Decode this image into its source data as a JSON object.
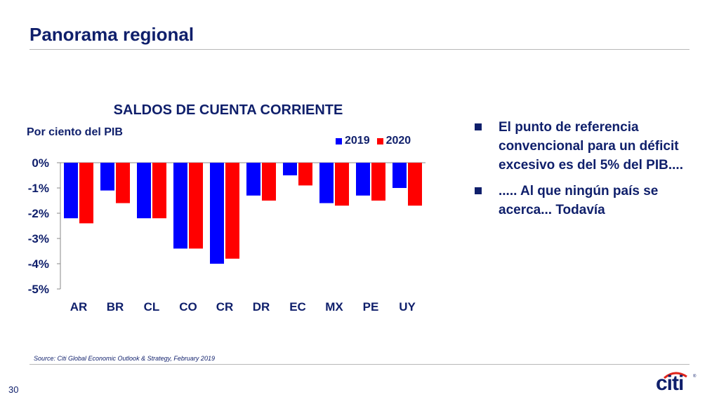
{
  "page": {
    "title": "Panorama regional",
    "page_number": "30",
    "source": "Source: Citi Global Economic Outlook & Strategy, February 2019",
    "logo_text": "citi",
    "logo_mark": "®"
  },
  "bullets": [
    "El punto de referencia convencional para un déficit excesivo es del 5% del PIB....",
    "..... Al que ningún país se acerca... Todavía"
  ],
  "colors": {
    "series_2019": "#0000ff",
    "series_2020": "#ff0000",
    "text": "#0f1f6b"
  },
  "chart_data": {
    "type": "bar",
    "title": "SALDOS DE CUENTA CORRIENTE",
    "ylabel": "Por ciento del PIB",
    "xlabel": "",
    "categories": [
      "AR",
      "BR",
      "CL",
      "CO",
      "CR",
      "DR",
      "EC",
      "MX",
      "PE",
      "UY"
    ],
    "series": [
      {
        "name": "2019",
        "values": [
          -2.2,
          -1.1,
          -2.2,
          -3.4,
          -4.0,
          -1.3,
          -0.5,
          -1.6,
          -1.3,
          -1.0
        ]
      },
      {
        "name": "2020",
        "values": [
          -2.4,
          -1.6,
          -2.2,
          -3.4,
          -3.8,
          -1.5,
          -0.9,
          -1.7,
          -1.5,
          -1.7
        ]
      }
    ],
    "ylim": [
      -5,
      0
    ],
    "yticks": [
      0,
      -1,
      -2,
      -3,
      -4,
      -5
    ],
    "ytick_labels": [
      "0%",
      "-1%",
      "-2%",
      "-3%",
      "-4%",
      "-5%"
    ],
    "legend_position": "top-right",
    "grid": false
  }
}
